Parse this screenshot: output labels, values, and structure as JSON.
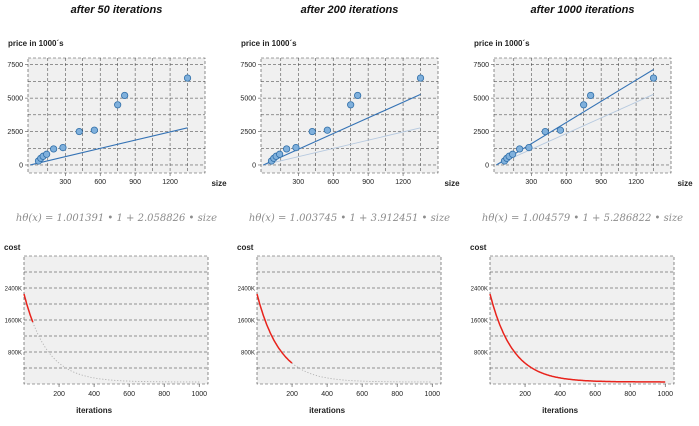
{
  "panels": [
    {
      "title": "after 50 iterations",
      "formula": "hθ(x) = 1.001391 • 1 + 2.058826 • size"
    },
    {
      "title": "after 200 iterations",
      "formula": "hθ(x) = 1.003745 • 1 + 3.912451 • size"
    },
    {
      "title": "after 1000 iterations",
      "formula": "hθ(x) = 1.004579 • 1 + 5.286822 • size"
    }
  ],
  "chart_data": [
    {
      "type": "scatter",
      "panel": 0,
      "ylabel": "price in 1000´s",
      "xlabel": "size",
      "xticks": [
        300,
        600,
        900,
        1200
      ],
      "yticks": [
        0,
        2500,
        5000,
        7500
      ],
      "xlim": [
        -20,
        1500
      ],
      "ylim": [
        -600,
        8000
      ],
      "grid": true,
      "points": [
        [
          70,
          300
        ],
        [
          90,
          500
        ],
        [
          110,
          650
        ],
        [
          140,
          800
        ],
        [
          200,
          1200
        ],
        [
          280,
          1300
        ],
        [
          420,
          2500
        ],
        [
          550,
          2600
        ],
        [
          750,
          4500
        ],
        [
          810,
          5200
        ],
        [
          1350,
          6500
        ]
      ],
      "lines": [
        {
          "name": "current fit",
          "intercept": 1.001391,
          "slope": 2.058826,
          "x_range": [
            0,
            1350
          ],
          "style": "current"
        }
      ]
    },
    {
      "type": "scatter",
      "panel": 1,
      "ylabel": "price in 1000´s",
      "xlabel": "size",
      "xticks": [
        300,
        600,
        900,
        1200
      ],
      "yticks": [
        0,
        2500,
        5000,
        7500
      ],
      "xlim": [
        -20,
        1500
      ],
      "ylim": [
        -600,
        8000
      ],
      "grid": true,
      "points": [
        [
          70,
          300
        ],
        [
          90,
          500
        ],
        [
          110,
          650
        ],
        [
          140,
          800
        ],
        [
          200,
          1200
        ],
        [
          280,
          1300
        ],
        [
          420,
          2500
        ],
        [
          550,
          2600
        ],
        [
          750,
          4500
        ],
        [
          810,
          5200
        ],
        [
          1350,
          6500
        ]
      ],
      "lines": [
        {
          "name": "previous fit",
          "intercept": 1.001391,
          "slope": 2.058826,
          "x_range": [
            0,
            1350
          ],
          "style": "previous"
        },
        {
          "name": "current fit",
          "intercept": 1.003745,
          "slope": 3.912451,
          "x_range": [
            0,
            1350
          ],
          "style": "current"
        }
      ]
    },
    {
      "type": "scatter",
      "panel": 2,
      "ylabel": "price in 1000´s",
      "xlabel": "size",
      "xticks": [
        300,
        600,
        900,
        1200
      ],
      "yticks": [
        0,
        2500,
        5000,
        7500
      ],
      "xlim": [
        -20,
        1500
      ],
      "ylim": [
        -600,
        8000
      ],
      "grid": true,
      "points": [
        [
          70,
          300
        ],
        [
          90,
          500
        ],
        [
          110,
          650
        ],
        [
          140,
          800
        ],
        [
          200,
          1200
        ],
        [
          280,
          1300
        ],
        [
          420,
          2500
        ],
        [
          550,
          2600
        ],
        [
          750,
          4500
        ],
        [
          810,
          5200
        ],
        [
          1350,
          6500
        ]
      ],
      "lines": [
        {
          "name": "previous fit",
          "intercept": 1.003745,
          "slope": 3.912451,
          "x_range": [
            0,
            1350
          ],
          "style": "previous"
        },
        {
          "name": "current fit",
          "intercept": 1.004579,
          "slope": 5.286822,
          "x_range": [
            0,
            1350
          ],
          "style": "current"
        }
      ]
    },
    {
      "type": "line",
      "panel": 0,
      "ylabel": "cost",
      "xlabel": "iterations",
      "xticks": [
        200,
        400,
        600,
        800,
        1000
      ],
      "yticks": [
        800,
        1600,
        2400
      ],
      "ytick_suffix": "K",
      "xlim": [
        0,
        1050
      ],
      "ylim": [
        0,
        3200
      ],
      "grid": true,
      "cost_curve": {
        "start": 2250,
        "floor": 50,
        "decay": 130,
        "x_end": 1000
      },
      "highlight_until": 50
    },
    {
      "type": "line",
      "panel": 1,
      "ylabel": "cost",
      "xlabel": "iterations",
      "xticks": [
        200,
        400,
        600,
        800,
        1000
      ],
      "yticks": [
        800,
        1600,
        2400
      ],
      "ytick_suffix": "K",
      "xlim": [
        0,
        1050
      ],
      "ylim": [
        0,
        3200
      ],
      "grid": true,
      "cost_curve": {
        "start": 2250,
        "floor": 50,
        "decay": 130,
        "x_end": 1000
      },
      "highlight_until": 200
    },
    {
      "type": "line",
      "panel": 2,
      "ylabel": "cost",
      "xlabel": "iterations",
      "xticks": [
        200,
        400,
        600,
        800,
        1000
      ],
      "yticks": [
        800,
        1600,
        2400
      ],
      "ytick_suffix": "K",
      "xlim": [
        0,
        1050
      ],
      "ylim": [
        0,
        3200
      ],
      "grid": true,
      "cost_curve": {
        "start": 2250,
        "floor": 50,
        "decay": 130,
        "x_end": 1000
      },
      "highlight_until": 1000
    }
  ],
  "colors": {
    "plot_bg": "#f0f0f0",
    "grid": "#333333",
    "point_fill": "#7fb0dc",
    "point_stroke": "#2f6ea8",
    "fit_line": "#3573b5",
    "prev_line": "#b6c9df",
    "cost_line": "#e8231c",
    "cost_dotted": "#b0b0b0"
  }
}
